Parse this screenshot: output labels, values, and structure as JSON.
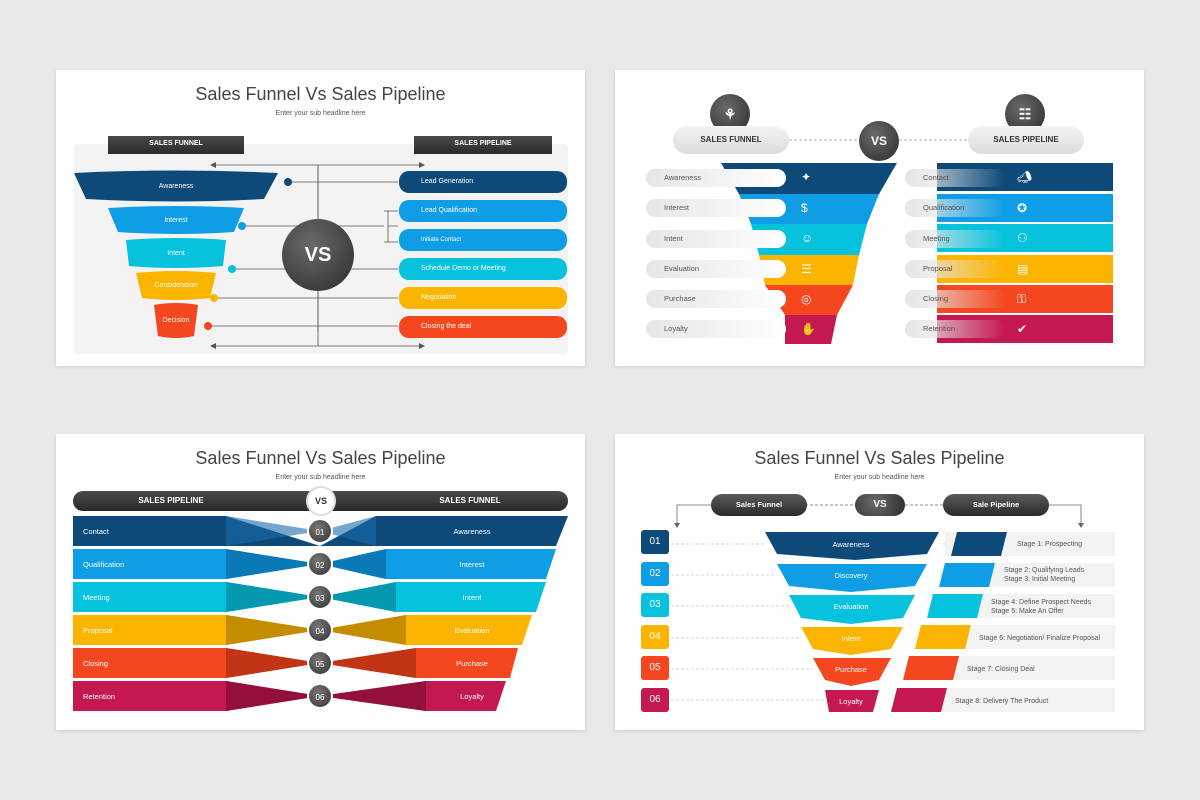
{
  "colors": {
    "dark_blue": "#0d4a7a",
    "blue": "#0f9ee6",
    "cyan": "#06c2dd",
    "yellow": "#fbb400",
    "orange": "#f4471f",
    "crimson": "#c41851",
    "dark": "#333333"
  },
  "slide1": {
    "title": "Sales Funnel Vs Sales Pipeline",
    "subtitle": "Enter your sub headline here",
    "left_tab": "SALES FUNNEL",
    "right_tab": "SALES PIPELINE",
    "vs": "VS",
    "funnel": [
      "Awareness",
      "Interest",
      "Intent",
      "Consideration",
      "Decision"
    ],
    "pipeline": [
      "Lead Generation",
      "Lead Qualification",
      "Initiate Contact",
      "Schedule Demo or Meeting",
      "Negotiation",
      "Closing the deal"
    ]
  },
  "slide2": {
    "left_header": "SALES FUNNEL",
    "right_header": "SALES PIPELINE",
    "vs": "VS",
    "funnel_labels": [
      "Awareness",
      "Interest",
      "Intent",
      "Evaluation",
      "Purchase",
      "Loyalty"
    ],
    "funnel_icons": [
      "lightbulb-icon",
      "dollar-person-icon",
      "handshake-idea-icon",
      "checklist-icon",
      "target-icon",
      "handshake-icon"
    ],
    "pipeline_labels": [
      "Contact",
      "Qualification",
      "Meeting",
      "Proposal",
      "Closing",
      "Retention"
    ],
    "pipeline_icons": [
      "megaphone-icon",
      "award-icon",
      "meeting-icon",
      "clipboard-chart-icon",
      "lock-icon",
      "person-check-icon"
    ]
  },
  "slide3": {
    "title": "Sales Funnel Vs Sales Pipeline",
    "subtitle": "Enter your sub headline here",
    "left_header": "SALES PIPELINE",
    "right_header": "SALES FUNNEL",
    "vs": "VS",
    "pipeline": [
      "Contact",
      "Qualification",
      "Meeting",
      "Proposal",
      "Closing",
      "Retention"
    ],
    "numbers": [
      "01",
      "02",
      "03",
      "04",
      "05",
      "06"
    ],
    "funnel": [
      "Awareness",
      "Interest",
      "Intent",
      "Evaluation",
      "Purchase",
      "Loyalty"
    ]
  },
  "slide4": {
    "title": "Sales Funnel Vs Sales Pipeline",
    "subtitle": "Enter your sub headline here",
    "left_header": "Sales Funnel",
    "right_header": "Sale Pipeline",
    "vs": "VS",
    "numbers": [
      "01",
      "02",
      "03",
      "04",
      "05",
      "06"
    ],
    "funnel": [
      "Awareness",
      "Discovery",
      "Evaluation",
      "Intent",
      "Purchase",
      "Loyalty"
    ],
    "stages": [
      [
        "Stage 1: Prospecting"
      ],
      [
        "Stage 2: Qualifying Leads",
        "Stage 3: Initial Meeting"
      ],
      [
        "Stage 4: Define Prospect Needs",
        "Stage 5: Make An Offer"
      ],
      [
        "Stage 6: Negotiation/ Finalize Proposal"
      ],
      [
        "Stage 7: Closing Deal"
      ],
      [
        "Stage 8: Delivery The Product"
      ]
    ]
  }
}
